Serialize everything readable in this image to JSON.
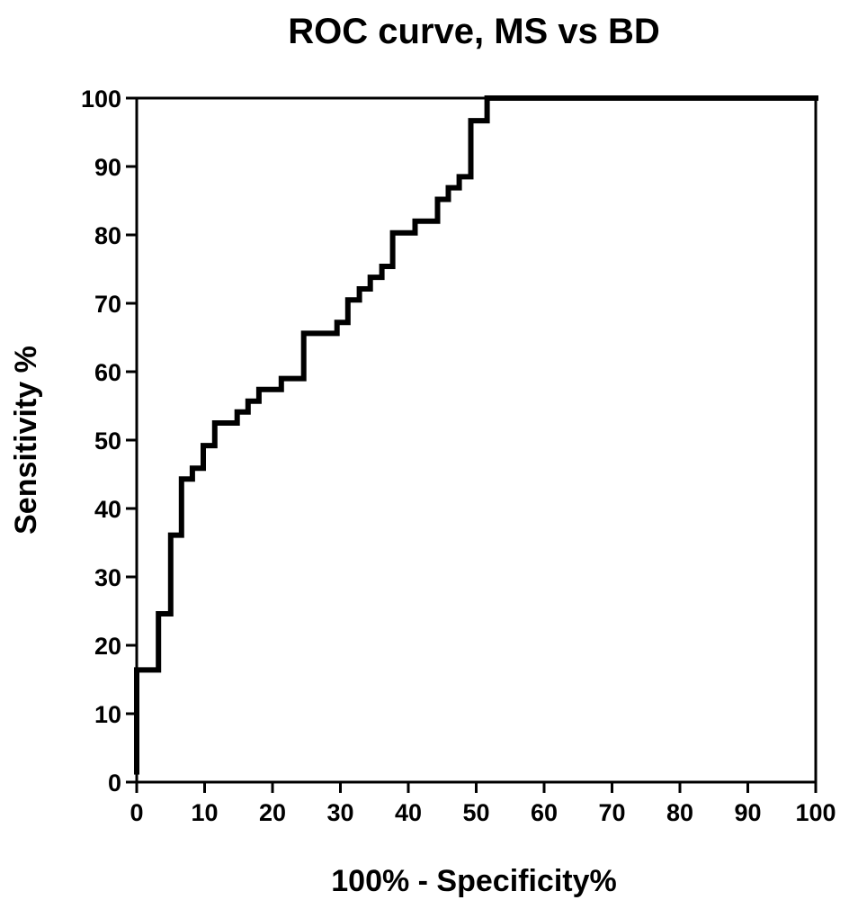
{
  "chart_data": {
    "type": "line",
    "title": "ROC curve, MS vs BD",
    "xlabel": "100% - Specificity%",
    "ylabel": "Sensitivity %",
    "xlim": [
      0,
      100
    ],
    "ylim": [
      0,
      100
    ],
    "x_ticks": [
      "0",
      "10",
      "20",
      "30",
      "40",
      "50",
      "60",
      "70",
      "80",
      "90",
      "100"
    ],
    "y_ticks": [
      "0",
      "10",
      "20",
      "30",
      "40",
      "50",
      "60",
      "70",
      "80",
      "90",
      "100"
    ],
    "grid": false,
    "legend": "none",
    "line_color": "#000000",
    "series": [
      {
        "x": [
          0,
          0,
          3.2,
          3.2,
          5.0,
          5.0,
          6.6,
          6.6,
          8.2,
          8.2,
          9.8,
          9.8,
          11.5,
          11.5,
          14.8,
          14.8,
          16.4,
          16.4,
          18.0,
          18.0,
          21.3,
          21.3,
          24.6,
          24.6,
          29.5,
          29.5,
          31.1,
          31.1,
          32.8,
          32.8,
          34.4,
          34.4,
          36.1,
          36.1,
          37.7,
          37.7,
          41.0,
          41.0,
          44.3,
          44.3,
          45.9,
          45.9,
          47.5,
          47.5,
          49.2,
          49.2,
          51.6,
          51.6,
          100
        ],
        "y": [
          1.5,
          16.4,
          16.4,
          24.6,
          24.6,
          36.1,
          36.1,
          44.3,
          44.3,
          45.9,
          45.9,
          49.2,
          49.2,
          52.5,
          52.5,
          54.1,
          54.1,
          55.7,
          55.7,
          57.4,
          57.4,
          59.0,
          59.0,
          65.6,
          65.6,
          67.2,
          67.2,
          70.5,
          70.5,
          72.1,
          72.1,
          73.8,
          73.8,
          75.4,
          75.4,
          80.3,
          80.3,
          82.0,
          82.0,
          85.2,
          85.2,
          86.9,
          86.9,
          88.5,
          88.5,
          96.7,
          96.7,
          100,
          100
        ]
      }
    ]
  }
}
